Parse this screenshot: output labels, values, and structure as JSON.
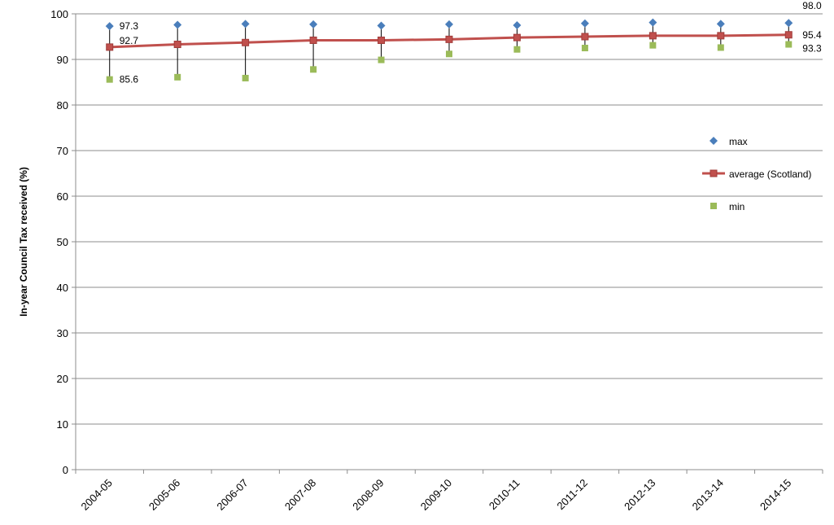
{
  "chart_data": {
    "type": "line",
    "categories": [
      "2004-05",
      "2005-06",
      "2006-07",
      "2007-08",
      "2008-09",
      "2009-10",
      "2010-11",
      "2011-12",
      "2012-13",
      "2013-14",
      "2014-15"
    ],
    "series": [
      {
        "name": "max",
        "values": [
          97.3,
          97.6,
          97.8,
          97.7,
          97.4,
          97.7,
          97.5,
          97.9,
          98.1,
          97.8,
          98.0
        ],
        "color": "#4a7ebb",
        "marker": "diamond"
      },
      {
        "name": "average (Scotland)",
        "values": [
          92.7,
          93.3,
          93.7,
          94.2,
          94.2,
          94.4,
          94.8,
          95.0,
          95.2,
          95.2,
          95.4
        ],
        "color": "#c0504d",
        "marker": "square"
      },
      {
        "name": "min",
        "values": [
          85.6,
          86.1,
          85.9,
          87.8,
          89.9,
          91.2,
          92.2,
          92.5,
          93.1,
          92.6,
          93.3
        ],
        "color": "#9bbb59",
        "marker": "square"
      }
    ],
    "data_labels": [
      {
        "series": "max",
        "index": 0,
        "text": "97.3"
      },
      {
        "series": "average (Scotland)",
        "index": 0,
        "text": "92.7"
      },
      {
        "series": "min",
        "index": 0,
        "text": "85.6"
      },
      {
        "series": "max",
        "index": 10,
        "text": "98.0"
      },
      {
        "series": "average (Scotland)",
        "index": 10,
        "text": "95.4"
      },
      {
        "series": "min",
        "index": 10,
        "text": "93.3"
      }
    ],
    "ylabel": "In-year Council Tax received (%)",
    "xlabel": "",
    "ylim": [
      0,
      100
    ],
    "yticks": [
      0,
      10,
      20,
      30,
      40,
      50,
      60,
      70,
      80,
      90,
      100
    ],
    "grid": "horizontal",
    "legend": "right",
    "high_low_lines": true
  }
}
